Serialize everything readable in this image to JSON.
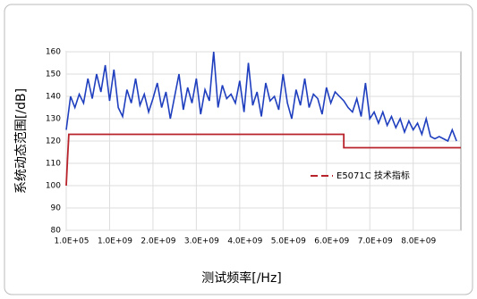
{
  "chart_data": {
    "type": "line",
    "xlabel": "测试频率[/Hz]",
    "ylabel": "系统动态范围[/dB]",
    "xlim": [
      0,
      9100000000
    ],
    "ylim": [
      80,
      160
    ],
    "xticks": [
      {
        "value": 100000,
        "label": "1.0E+05"
      },
      {
        "value": 1000000000,
        "label": "1.0E+09"
      },
      {
        "value": 2000000000,
        "label": "2.0E+09"
      },
      {
        "value": 3000000000,
        "label": "3.0E+09"
      },
      {
        "value": 4000000000,
        "label": "4.0E+09"
      },
      {
        "value": 5000000000,
        "label": "5.0E+09"
      },
      {
        "value": 6000000000,
        "label": "6.0E+09"
      },
      {
        "value": 7000000000,
        "label": "7.0E+09"
      },
      {
        "value": 8000000000,
        "label": "8.0E+09"
      }
    ],
    "yticks": [
      80,
      90,
      100,
      110,
      120,
      130,
      140,
      150,
      160
    ],
    "grid": true,
    "series": [
      {
        "color": "#1f3fbf",
        "x": [
          100000,
          100000000.0,
          200000000.0,
          300000000.0,
          400000000.0,
          500000000.0,
          600000000.0,
          700000000.0,
          800000000.0,
          900000000.0,
          1000000000.0,
          1100000000.0,
          1200000000.0,
          1300000000.0,
          1400000000.0,
          1500000000.0,
          1600000000.0,
          1700000000.0,
          1800000000.0,
          1900000000.0,
          2000000000.0,
          2100000000.0,
          2200000000.0,
          2300000000.0,
          2400000000.0,
          2500000000.0,
          2600000000.0,
          2700000000.0,
          2800000000.0,
          2900000000.0,
          3000000000.0,
          3100000000.0,
          3200000000.0,
          3300000000.0,
          3400000000.0,
          3500000000.0,
          3600000000.0,
          3700000000.0,
          3800000000.0,
          3900000000.0,
          4000000000.0,
          4100000000.0,
          4200000000.0,
          4300000000.0,
          4400000000.0,
          4500000000.0,
          4600000000.0,
          4700000000.0,
          4800000000.0,
          4900000000.0,
          5000000000.0,
          5100000000.0,
          5200000000.0,
          5300000000.0,
          5400000000.0,
          5500000000.0,
          5600000000.0,
          5700000000.0,
          5800000000.0,
          5900000000.0,
          6000000000.0,
          6100000000.0,
          6200000000.0,
          6300000000.0,
          6400000000.0,
          6500000000.0,
          6600000000.0,
          6700000000.0,
          6800000000.0,
          6900000000.0,
          7000000000.0,
          7100000000.0,
          7200000000.0,
          7300000000.0,
          7400000000.0,
          7500000000.0,
          7600000000.0,
          7700000000.0,
          7800000000.0,
          7900000000.0,
          8000000000.0,
          8100000000.0,
          8200000000.0,
          8300000000.0,
          8400000000.0,
          8500000000.0,
          8600000000.0,
          8700000000.0,
          8800000000.0,
          8900000000.0,
          9000000000.0
        ],
        "values": [
          125,
          140,
          135,
          141,
          137,
          148,
          139,
          150,
          142,
          154,
          138,
          152,
          135,
          131,
          143,
          137,
          148,
          136,
          141,
          133,
          139,
          146,
          135,
          142,
          130,
          140,
          150,
          134,
          144,
          137,
          148,
          132,
          143,
          138,
          160,
          135,
          145,
          139,
          141,
          137,
          147,
          133,
          155,
          136,
          142,
          131,
          146,
          138,
          140,
          134,
          150,
          137,
          130,
          143,
          136,
          148,
          135,
          141,
          139,
          132,
          144,
          137,
          142,
          140,
          138,
          135,
          133,
          139,
          131,
          146,
          130,
          133,
          128,
          133,
          127,
          131,
          126,
          130,
          124,
          129,
          125,
          128,
          123,
          130,
          122,
          121,
          122,
          121,
          120,
          125,
          120
        ]
      },
      {
        "name": "E5071C 技术指标",
        "color": "#b8232b",
        "x": [
          100000,
          30000000,
          60000000,
          6400000000,
          6400000000,
          9100000000
        ],
        "values": [
          100,
          112,
          123,
          123,
          117,
          117
        ]
      }
    ]
  }
}
